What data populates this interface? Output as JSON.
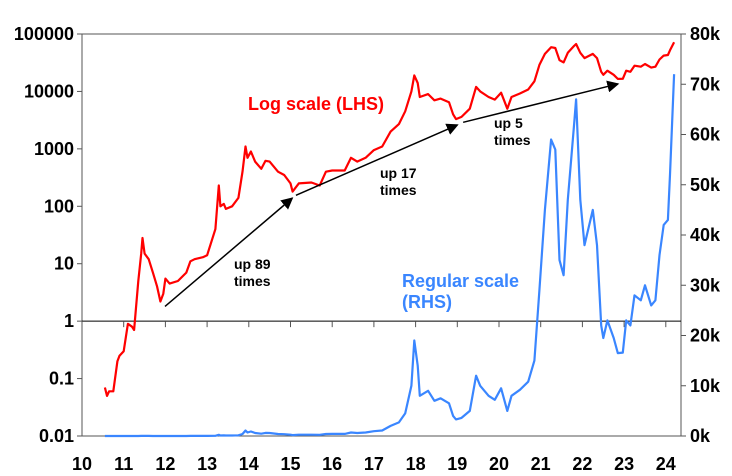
{
  "chart_data": {
    "type": "line",
    "title": "",
    "xlabel": "",
    "x_tick_labels": [
      "10",
      "11",
      "12",
      "13",
      "14",
      "15",
      "16",
      "17",
      "18",
      "19",
      "20",
      "21",
      "22",
      "23",
      "24"
    ],
    "xlim": [
      2010,
      2024.35
    ],
    "left_axis": {
      "scale": "log",
      "ylim": [
        0.01,
        100000
      ],
      "tick_labels": [
        "100000",
        "10000",
        "1000",
        "100",
        "10",
        "1",
        "0.1",
        "0.01"
      ],
      "tick_values": [
        100000,
        10000,
        1000,
        100,
        10,
        1,
        0.1,
        0.01
      ]
    },
    "right_axis": {
      "scale": "linear",
      "ylim": [
        0,
        80000
      ],
      "tick_labels": [
        "80k",
        "70k",
        "60k",
        "50k",
        "40k",
        "30k",
        "20k",
        "10k",
        "0k"
      ],
      "tick_values": [
        80000,
        70000,
        60000,
        50000,
        40000,
        30000,
        20000,
        10000,
        0
      ]
    },
    "grid": false,
    "x": [
      2010.55,
      2010.6,
      2010.65,
      2010.75,
      2010.85,
      2010.9,
      2011.0,
      2011.1,
      2011.2,
      2011.25,
      2011.35,
      2011.42,
      2011.45,
      2011.5,
      2011.6,
      2011.7,
      2011.8,
      2011.88,
      2011.95,
      2012.0,
      2012.1,
      2012.3,
      2012.5,
      2012.6,
      2012.7,
      2012.9,
      2013.0,
      2013.2,
      2013.28,
      2013.32,
      2013.4,
      2013.45,
      2013.6,
      2013.75,
      2013.85,
      2013.92,
      2013.97,
      2014.05,
      2014.15,
      2014.3,
      2014.4,
      2014.5,
      2014.7,
      2014.85,
      2015.0,
      2015.05,
      2015.2,
      2015.5,
      2015.7,
      2015.85,
      2016.0,
      2016.3,
      2016.45,
      2016.6,
      2016.8,
      2017.0,
      2017.2,
      2017.4,
      2017.6,
      2017.75,
      2017.9,
      2017.97,
      2018.05,
      2018.1,
      2018.3,
      2018.45,
      2018.6,
      2018.8,
      2018.9,
      2018.97,
      2019.1,
      2019.3,
      2019.45,
      2019.55,
      2019.75,
      2019.9,
      2020.05,
      2020.2,
      2020.3,
      2020.5,
      2020.7,
      2020.85,
      2020.97,
      2021.1,
      2021.25,
      2021.35,
      2021.45,
      2021.55,
      2021.65,
      2021.8,
      2021.85,
      2021.95,
      2022.05,
      2022.25,
      2022.35,
      2022.45,
      2022.5,
      2022.6,
      2022.75,
      2022.85,
      2022.97,
      2023.05,
      2023.15,
      2023.25,
      2023.4,
      2023.5,
      2023.65,
      2023.75,
      2023.85,
      2023.95,
      2024.05,
      2024.1,
      2024.2
    ],
    "series": [
      {
        "name": "Log scale (LHS)",
        "axis": "left",
        "color": "#ff0000",
        "values": [
          0.07,
          0.05,
          0.06,
          0.06,
          0.2,
          0.25,
          0.3,
          0.9,
          0.8,
          0.7,
          5,
          15,
          28,
          15,
          12,
          7,
          4,
          2.2,
          3,
          5.5,
          4.5,
          5,
          7,
          11,
          12,
          13,
          14,
          40,
          230,
          100,
          110,
          90,
          100,
          140,
          400,
          1100,
          700,
          900,
          600,
          450,
          620,
          600,
          400,
          350,
          250,
          180,
          250,
          260,
          230,
          400,
          420,
          420,
          700,
          600,
          700,
          950,
          1100,
          2000,
          2700,
          4500,
          10000,
          19000,
          14000,
          8000,
          9000,
          7000,
          7500,
          6500,
          4000,
          3300,
          3600,
          5000,
          12000,
          10000,
          8000,
          7200,
          9500,
          5000,
          8000,
          9200,
          10800,
          15000,
          29000,
          45000,
          59000,
          57000,
          35000,
          32000,
          47000,
          62000,
          67000,
          47000,
          38000,
          45000,
          38000,
          22000,
          19500,
          23000,
          19500,
          16500,
          16600,
          23000,
          22000,
          28000,
          27000,
          30000,
          26000,
          27000,
          36000,
          42000,
          43000,
          52000,
          72000
        ]
      },
      {
        "name": "Regular scale (RHS)",
        "axis": "right",
        "color": "#3a86ff",
        "values": [
          0.07,
          0.05,
          0.06,
          0.06,
          0.2,
          0.25,
          0.3,
          0.9,
          0.8,
          0.7,
          5,
          15,
          28,
          15,
          12,
          7,
          4,
          2.2,
          3,
          5.5,
          4.5,
          5,
          7,
          11,
          12,
          13,
          14,
          40,
          230,
          100,
          110,
          90,
          100,
          140,
          400,
          1100,
          700,
          900,
          600,
          450,
          620,
          600,
          400,
          350,
          250,
          180,
          250,
          260,
          230,
          400,
          420,
          420,
          700,
          600,
          700,
          950,
          1100,
          2000,
          2700,
          4500,
          10000,
          19000,
          14000,
          8000,
          9000,
          7000,
          7500,
          6500,
          4000,
          3300,
          3600,
          5000,
          12000,
          10000,
          8000,
          7200,
          9500,
          5000,
          8000,
          9200,
          10800,
          15000,
          29000,
          45000,
          59000,
          57000,
          35000,
          32000,
          47000,
          62000,
          67000,
          47000,
          38000,
          45000,
          38000,
          22000,
          19500,
          23000,
          19500,
          16500,
          16600,
          23000,
          22000,
          28000,
          27000,
          30000,
          26000,
          27000,
          36000,
          42000,
          43000,
          52000,
          72000
        ]
      }
    ],
    "series_labels": {
      "log": "Log scale (LHS)",
      "regular_line1": "Regular scale",
      "regular_line2": "(RHS)"
    },
    "annotations": [
      {
        "line1": "up 89",
        "line2": "times",
        "arrow_from": [
          2011.99,
          1.8
        ],
        "arrow_to": [
          2015.04,
          138
        ]
      },
      {
        "line1": "up 17",
        "line2": "times",
        "arrow_from": [
          2015.13,
          155
        ],
        "arrow_to": [
          2019.0,
          2600
        ]
      },
      {
        "line1": "up 5",
        "line2": "times",
        "arrow_from": [
          2019.14,
          2900
        ],
        "arrow_to": [
          2022.85,
          13500
        ]
      }
    ]
  }
}
